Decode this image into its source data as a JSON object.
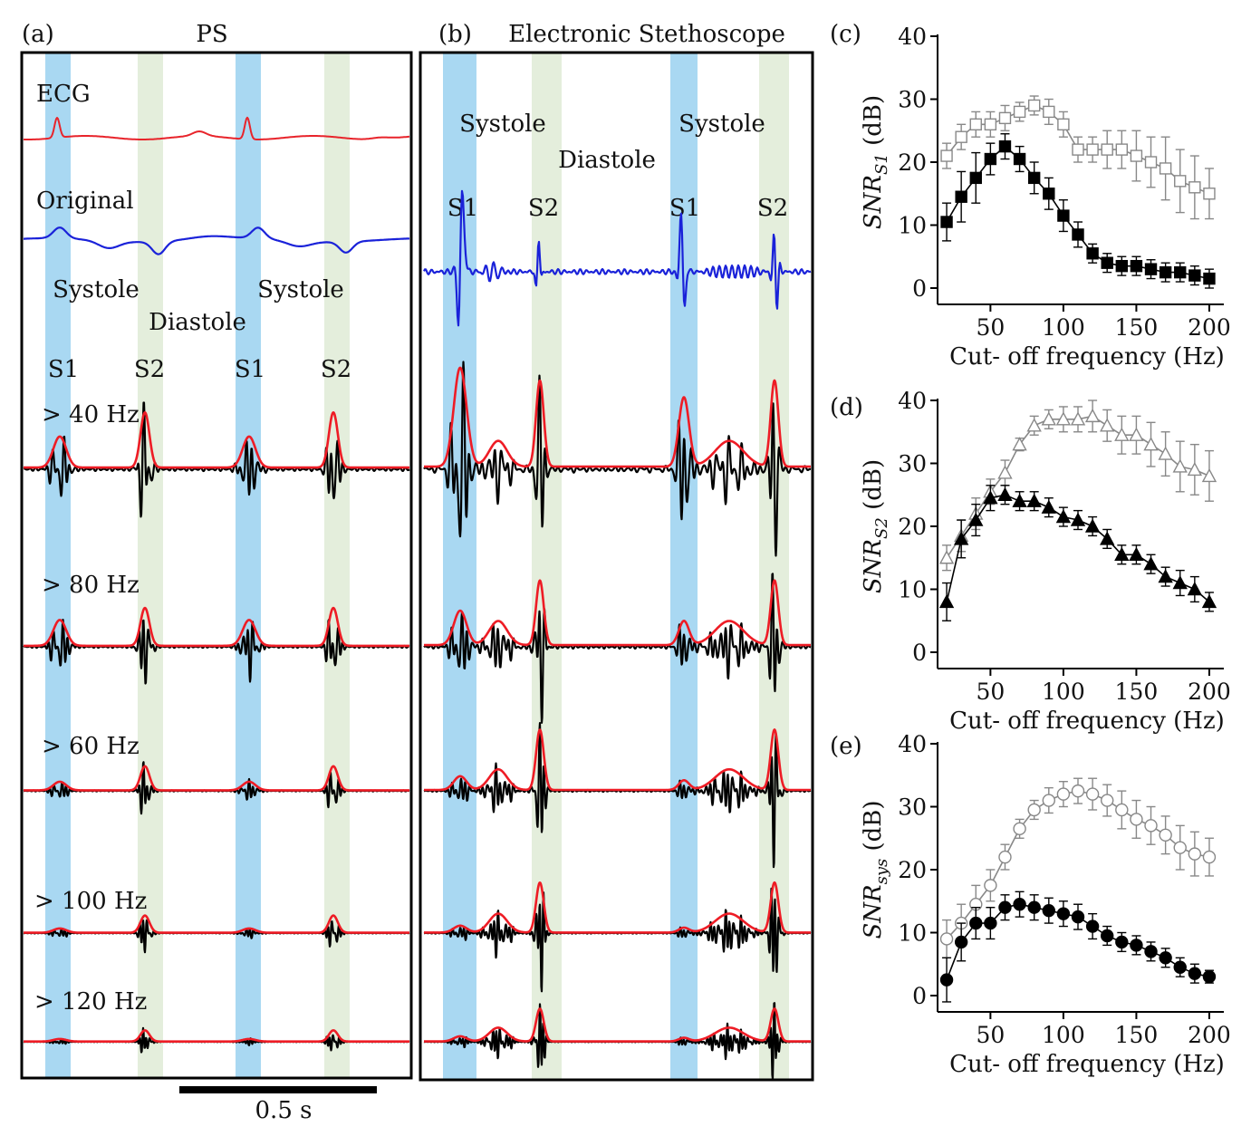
{
  "colors": {
    "s1_band": "#a9d8f2",
    "s2_band": "#e4eedc",
    "ecg": "#e8242b",
    "original": "#1a22d9",
    "envelope": "#ee1c25",
    "signal": "#000000",
    "filtered_series": "#000000",
    "unfiltered_series": "#888888"
  },
  "panel_a": {
    "letter": "(a)",
    "title": "PS",
    "ecg_label": "ECG",
    "original_label": "Original",
    "systole_label": "Systole",
    "diastole_label": "Diastole",
    "s1_label": "S1",
    "s2_label": "S2",
    "filter_labels": [
      "> 40 Hz",
      "> 80 Hz",
      "> 60 Hz",
      "> 100 Hz",
      "> 120 Hz"
    ],
    "scale_bar_label": "0.5 s"
  },
  "panel_b": {
    "letter": "(b)",
    "title": "Electronic Stethoscope",
    "systole_label": "Systole",
    "diastole_label": "Diastole",
    "s1_label": "S1",
    "s2_label": "S2"
  },
  "chart_data": [
    {
      "panel": "(c)",
      "type": "line",
      "title": "",
      "xlabel": "Cut- off frequency (Hz)",
      "ylabel_main": "SNR",
      "ylabel_sub": "S1",
      "ylabel_unit": "(dB)",
      "xlim": [
        15,
        205
      ],
      "ylim": [
        0,
        40
      ],
      "xticks": [
        50,
        100,
        150,
        200
      ],
      "yticks": [
        0,
        10,
        20,
        30,
        40
      ],
      "marker": "square",
      "x": [
        20,
        30,
        40,
        50,
        60,
        70,
        80,
        90,
        100,
        110,
        120,
        130,
        140,
        150,
        160,
        170,
        180,
        190,
        200
      ],
      "series": [
        {
          "name": "open",
          "filled": false,
          "values": [
            21,
            24,
            26,
            26,
            27,
            28,
            29,
            28,
            26,
            22,
            22,
            22,
            22,
            21,
            20,
            19,
            17,
            16,
            15
          ],
          "errors": [
            2,
            2,
            2,
            2,
            2,
            1.5,
            1.5,
            2,
            2,
            2,
            2,
            3,
            3,
            4,
            4,
            5,
            5,
            5,
            4
          ]
        },
        {
          "name": "filled",
          "filled": true,
          "values": [
            10.5,
            14.5,
            17.5,
            20.5,
            22.5,
            20.5,
            17.5,
            15,
            11.5,
            8.5,
            5.5,
            4,
            3.5,
            3.5,
            3,
            2.5,
            2.5,
            2,
            1.5
          ],
          "errors": [
            3,
            4,
            4,
            2.5,
            2,
            2,
            2.5,
            2.5,
            2.5,
            2,
            1.5,
            1.5,
            1.5,
            1.5,
            1.5,
            1.5,
            1.5,
            1.5,
            1.5
          ]
        }
      ]
    },
    {
      "panel": "(d)",
      "type": "line",
      "title": "",
      "xlabel": "Cut- off frequency (Hz)",
      "ylabel_main": "SNR",
      "ylabel_sub": "S2",
      "ylabel_unit": "(dB)",
      "xlim": [
        15,
        205
      ],
      "ylim": [
        0,
        40
      ],
      "xticks": [
        50,
        100,
        150,
        200
      ],
      "yticks": [
        0,
        10,
        20,
        30,
        40
      ],
      "marker": "triangle",
      "x": [
        20,
        30,
        40,
        50,
        60,
        70,
        80,
        90,
        100,
        110,
        120,
        130,
        140,
        150,
        160,
        170,
        180,
        190,
        200
      ],
      "series": [
        {
          "name": "open",
          "filled": false,
          "values": [
            15,
            18.5,
            22,
            25.5,
            28.5,
            33,
            36,
            37,
            37,
            37,
            37.5,
            36,
            34.5,
            34.5,
            33,
            31.5,
            29.5,
            29,
            28
          ],
          "errors": [
            2,
            2.5,
            2.5,
            2,
            2,
            1,
            1.5,
            1.5,
            2,
            2,
            2.5,
            2.5,
            3,
            3,
            3.5,
            3.5,
            4,
            4,
            4
          ]
        },
        {
          "name": "filled",
          "filled": true,
          "values": [
            8,
            18,
            21,
            24.5,
            25,
            24,
            24,
            23,
            21.5,
            21,
            20,
            18,
            15.5,
            15.5,
            14,
            12,
            11,
            10,
            8
          ],
          "errors": [
            3,
            3,
            2.5,
            2,
            1.5,
            1.5,
            1.5,
            1.5,
            1.5,
            1.5,
            1.5,
            1.5,
            1.5,
            1.5,
            1.5,
            1.5,
            2,
            2,
            1.5
          ]
        }
      ]
    },
    {
      "panel": "(e)",
      "type": "line",
      "title": "",
      "xlabel": "Cut- off frequency (Hz)",
      "ylabel_main": "SNR",
      "ylabel_sub": "sys",
      "ylabel_unit": "(dB)",
      "xlim": [
        15,
        205
      ],
      "ylim": [
        0,
        40
      ],
      "xticks": [
        50,
        100,
        150,
        200
      ],
      "yticks": [
        0,
        10,
        20,
        30,
        40
      ],
      "marker": "circle",
      "x": [
        20,
        30,
        40,
        50,
        60,
        70,
        80,
        90,
        100,
        110,
        120,
        130,
        140,
        150,
        160,
        170,
        180,
        190,
        200
      ],
      "series": [
        {
          "name": "open",
          "filled": false,
          "values": [
            9,
            11.5,
            14.5,
            17.5,
            22,
            26.5,
            29.5,
            31,
            32,
            32.5,
            32,
            31,
            29.5,
            28,
            27,
            25.5,
            23.5,
            22.5,
            22
          ],
          "errors": [
            3,
            3,
            3,
            2.5,
            2,
            1.5,
            1.5,
            2,
            2,
            2,
            2.5,
            2.5,
            3,
            3,
            3,
            3,
            3.5,
            3.5,
            3
          ]
        },
        {
          "name": "filled",
          "filled": true,
          "values": [
            2.5,
            8.5,
            11.5,
            11.5,
            14,
            14.5,
            14,
            13.5,
            13,
            12.5,
            11,
            9.5,
            8.5,
            8,
            7,
            6,
            4.5,
            3.5,
            3
          ],
          "errors": [
            3.5,
            3,
            2.5,
            2.5,
            2,
            2,
            2,
            2,
            2,
            2,
            2,
            1.5,
            1.5,
            1.5,
            1.5,
            1.5,
            1.5,
            1.5,
            1
          ]
        }
      ]
    }
  ]
}
